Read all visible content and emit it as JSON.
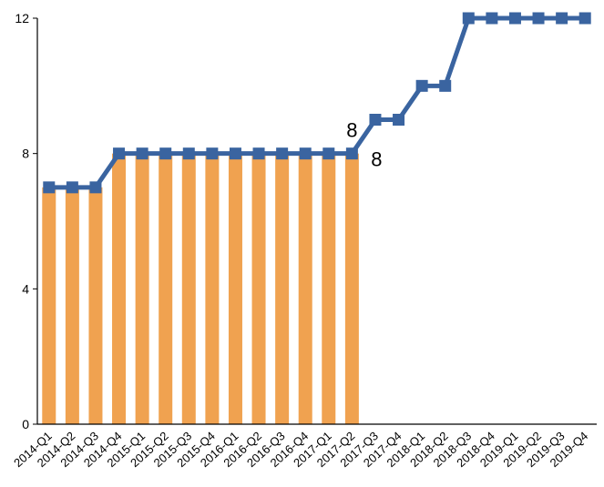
{
  "chart_data": {
    "type": "bar",
    "categories": [
      "2014-Q1",
      "2014-Q2",
      "2014-Q3",
      "2014-Q4",
      "2015-Q1",
      "2015-Q2",
      "2015-Q3",
      "2015-Q4",
      "2016-Q1",
      "2016-Q2",
      "2016-Q3",
      "2016-Q4",
      "2017-Q1",
      "2017-Q2",
      "2017-Q3",
      "2017-Q4",
      "2018-Q1",
      "2018-Q2",
      "2018-Q3",
      "2018-Q4",
      "2019-Q1",
      "2019-Q2",
      "2019-Q3",
      "2019-Q4"
    ],
    "series": [
      {
        "type": "bar",
        "color": "#F0A250",
        "values": [
          7,
          7,
          7,
          8,
          8,
          8,
          8,
          8,
          8,
          8,
          8,
          8,
          8,
          8,
          null,
          null,
          null,
          null,
          null,
          null,
          null,
          null,
          null,
          null
        ]
      },
      {
        "type": "line",
        "color": "#3A64A0",
        "marker": "square",
        "values": [
          7,
          7,
          7,
          8,
          8,
          8,
          8,
          8,
          8,
          8,
          8,
          8,
          8,
          8,
          9,
          9,
          10,
          10,
          12,
          12,
          12,
          12,
          12,
          12
        ]
      }
    ],
    "data_labels": [
      {
        "series": 0,
        "index": 13,
        "text": "8"
      },
      {
        "series": 1,
        "index": 13,
        "text": "8"
      }
    ],
    "yticks": [
      "0",
      "4",
      "8",
      "12"
    ],
    "ylim": [
      0,
      12
    ],
    "grid": false,
    "legend": "none",
    "title": "",
    "xlabel": "",
    "ylabel": ""
  }
}
